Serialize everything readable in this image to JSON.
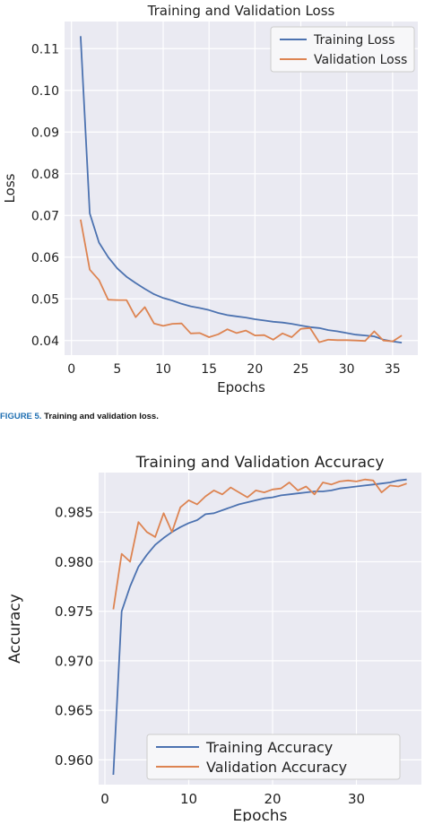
{
  "caption": {
    "label": "FIGURE 5.",
    "text": "Training and validation loss."
  },
  "colors": {
    "training": "#4c72b0",
    "validation": "#dd8452",
    "plot_bg": "#eaeaf2",
    "grid": "#ffffff"
  },
  "chart_data": [
    {
      "type": "line",
      "title": "Training and Validation Loss",
      "xlabel": "Epochs",
      "ylabel": "Loss",
      "xlim": [
        -0.75,
        37.75
      ],
      "ylim": [
        0.0365,
        0.1165
      ],
      "xticks": [
        0,
        5,
        10,
        15,
        20,
        25,
        30,
        35
      ],
      "yticks": [
        0.04,
        0.05,
        0.06,
        0.07,
        0.08,
        0.09,
        0.1,
        0.11
      ],
      "ytick_labels": [
        "0.04",
        "0.05",
        "0.06",
        "0.07",
        "0.08",
        "0.09",
        "0.10",
        "0.11"
      ],
      "grid": true,
      "legend": "top-right",
      "x": [
        1,
        2,
        3,
        4,
        5,
        6,
        7,
        8,
        9,
        10,
        11,
        12,
        13,
        14,
        15,
        16,
        17,
        18,
        19,
        20,
        21,
        22,
        23,
        24,
        25,
        26,
        27,
        28,
        29,
        30,
        31,
        32,
        33,
        34,
        35,
        36
      ],
      "series": [
        {
          "name": "Training Loss",
          "values": [
            0.113,
            0.0705,
            0.0635,
            0.06,
            0.0573,
            0.0553,
            0.0538,
            0.0524,
            0.0511,
            0.0502,
            0.0496,
            0.0488,
            0.0482,
            0.0478,
            0.0473,
            0.0466,
            0.0461,
            0.0458,
            0.0455,
            0.0451,
            0.0448,
            0.0445,
            0.0443,
            0.044,
            0.0436,
            0.0432,
            0.043,
            0.0425,
            0.0422,
            0.0418,
            0.0414,
            0.0412,
            0.041,
            0.0402,
            0.0398,
            0.0395
          ]
        },
        {
          "name": "Validation Loss",
          "values": [
            0.069,
            0.057,
            0.0545,
            0.0498,
            0.0497,
            0.0497,
            0.0456,
            0.048,
            0.0441,
            0.0435,
            0.044,
            0.0441,
            0.0417,
            0.0418,
            0.0408,
            0.0415,
            0.0427,
            0.0418,
            0.0424,
            0.0412,
            0.0413,
            0.0402,
            0.0417,
            0.0408,
            0.0428,
            0.043,
            0.0396,
            0.0402,
            0.0401,
            0.0401,
            0.04,
            0.0399,
            0.0422,
            0.04,
            0.0398,
            0.0412
          ]
        }
      ]
    },
    {
      "type": "line",
      "title": "Training and Validation Accuracy",
      "xlabel": "Epochs",
      "ylabel": "Accuracy",
      "xlim": [
        -0.75,
        37.75
      ],
      "ylim": [
        0.9575,
        0.989
      ],
      "xticks": [
        0,
        10,
        20,
        30
      ],
      "yticks": [
        0.96,
        0.965,
        0.97,
        0.975,
        0.98,
        0.985
      ],
      "ytick_labels": [
        "0.960",
        "0.965",
        "0.970",
        "0.975",
        "0.980",
        "0.985"
      ],
      "grid": true,
      "legend": "bottom-right",
      "x": [
        1,
        2,
        3,
        4,
        5,
        6,
        7,
        8,
        9,
        10,
        11,
        12,
        13,
        14,
        15,
        16,
        17,
        18,
        19,
        20,
        21,
        22,
        23,
        24,
        25,
        26,
        27,
        28,
        29,
        30,
        31,
        32,
        33,
        34,
        35,
        36
      ],
      "series": [
        {
          "name": "Training Accuracy",
          "values": [
            0.9585,
            0.975,
            0.9775,
            0.9795,
            0.9807,
            0.9817,
            0.9824,
            0.983,
            0.9835,
            0.9839,
            0.9842,
            0.9848,
            0.9849,
            0.9852,
            0.9855,
            0.9858,
            0.986,
            0.9862,
            0.9864,
            0.9865,
            0.9867,
            0.9868,
            0.9869,
            0.987,
            0.9871,
            0.9871,
            0.9872,
            0.9874,
            0.9875,
            0.9876,
            0.9877,
            0.9878,
            0.9879,
            0.988,
            0.9882,
            0.9883
          ]
        },
        {
          "name": "Validation Accuracy",
          "values": [
            0.9752,
            0.9808,
            0.98,
            0.984,
            0.983,
            0.9825,
            0.9849,
            0.983,
            0.9855,
            0.9862,
            0.9858,
            0.9866,
            0.9872,
            0.9868,
            0.9875,
            0.987,
            0.9865,
            0.9872,
            0.987,
            0.9873,
            0.9874,
            0.988,
            0.9872,
            0.9876,
            0.9868,
            0.988,
            0.9878,
            0.9881,
            0.9882,
            0.9881,
            0.9883,
            0.9882,
            0.987,
            0.9877,
            0.9876,
            0.9879
          ]
        }
      ]
    }
  ]
}
